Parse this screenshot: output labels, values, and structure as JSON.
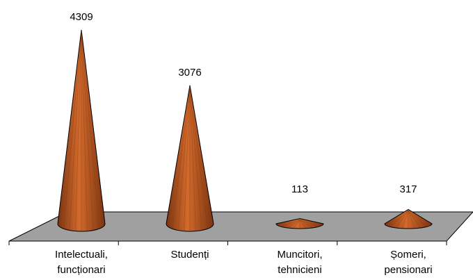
{
  "chart_data": {
    "type": "bar",
    "style": "3d-cone",
    "categories": [
      [
        "Intelectuali,",
        "funcționari"
      ],
      [
        "Studenți"
      ],
      [
        "Muncitori,",
        "tehnicieni"
      ],
      [
        "Șomeri,",
        "pensionari"
      ]
    ],
    "values": [
      4309,
      3076,
      113,
      317
    ],
    "title": "",
    "xlabel": "",
    "ylabel": "",
    "ylim": [
      0,
      4309
    ],
    "grid": false,
    "legend": "none",
    "colors": {
      "cone_fill": "#B5521B",
      "cone_light": "#D26A2C",
      "cone_dark": "#7A3410",
      "floor": "#A0A0A0",
      "outline": "#000000"
    }
  }
}
